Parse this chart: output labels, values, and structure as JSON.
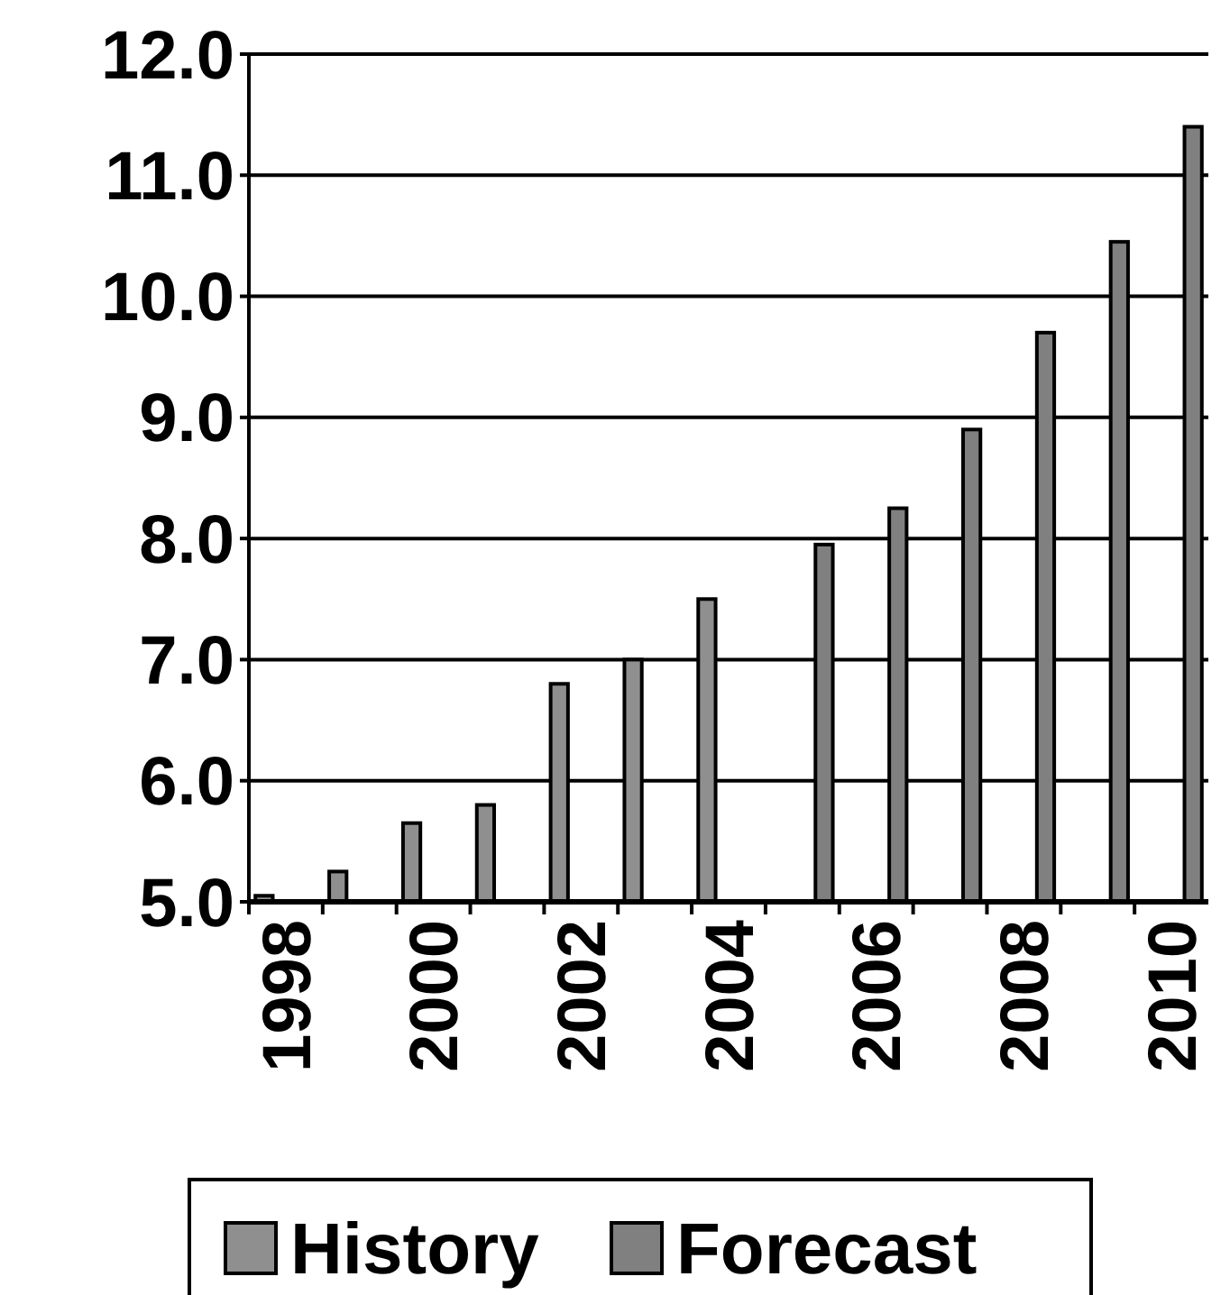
{
  "chart_data": {
    "type": "bar",
    "categories": [
      "1998",
      null,
      "2000",
      null,
      "2002",
      null,
      "2004",
      null,
      "2006",
      null,
      "2008",
      null,
      "2010"
    ],
    "series": [
      {
        "name": "History",
        "color": "#8f8f8f",
        "values": [
          5.05,
          5.25,
          5.65,
          5.8,
          6.8,
          7.0,
          7.5,
          null,
          null,
          null,
          null,
          null,
          null
        ]
      },
      {
        "name": "Forecast",
        "color": "#808080",
        "values": [
          null,
          null,
          null,
          null,
          null,
          null,
          null,
          7.95,
          8.25,
          8.9,
          9.7,
          10.45,
          11.4
        ]
      }
    ],
    "ylim": [
      5,
      12
    ],
    "yticks": [
      {
        "value": 5,
        "label": "5.0"
      },
      {
        "value": 6,
        "label": "6.0"
      },
      {
        "value": 7,
        "label": "7.0"
      },
      {
        "value": 8,
        "label": "8.0"
      },
      {
        "value": 9,
        "label": "9.0"
      },
      {
        "value": 10,
        "label": "10.0"
      },
      {
        "value": 11,
        "label": "11.0"
      },
      {
        "value": 12,
        "label": "12.0"
      }
    ],
    "grid": "y",
    "legend": "bottom"
  }
}
